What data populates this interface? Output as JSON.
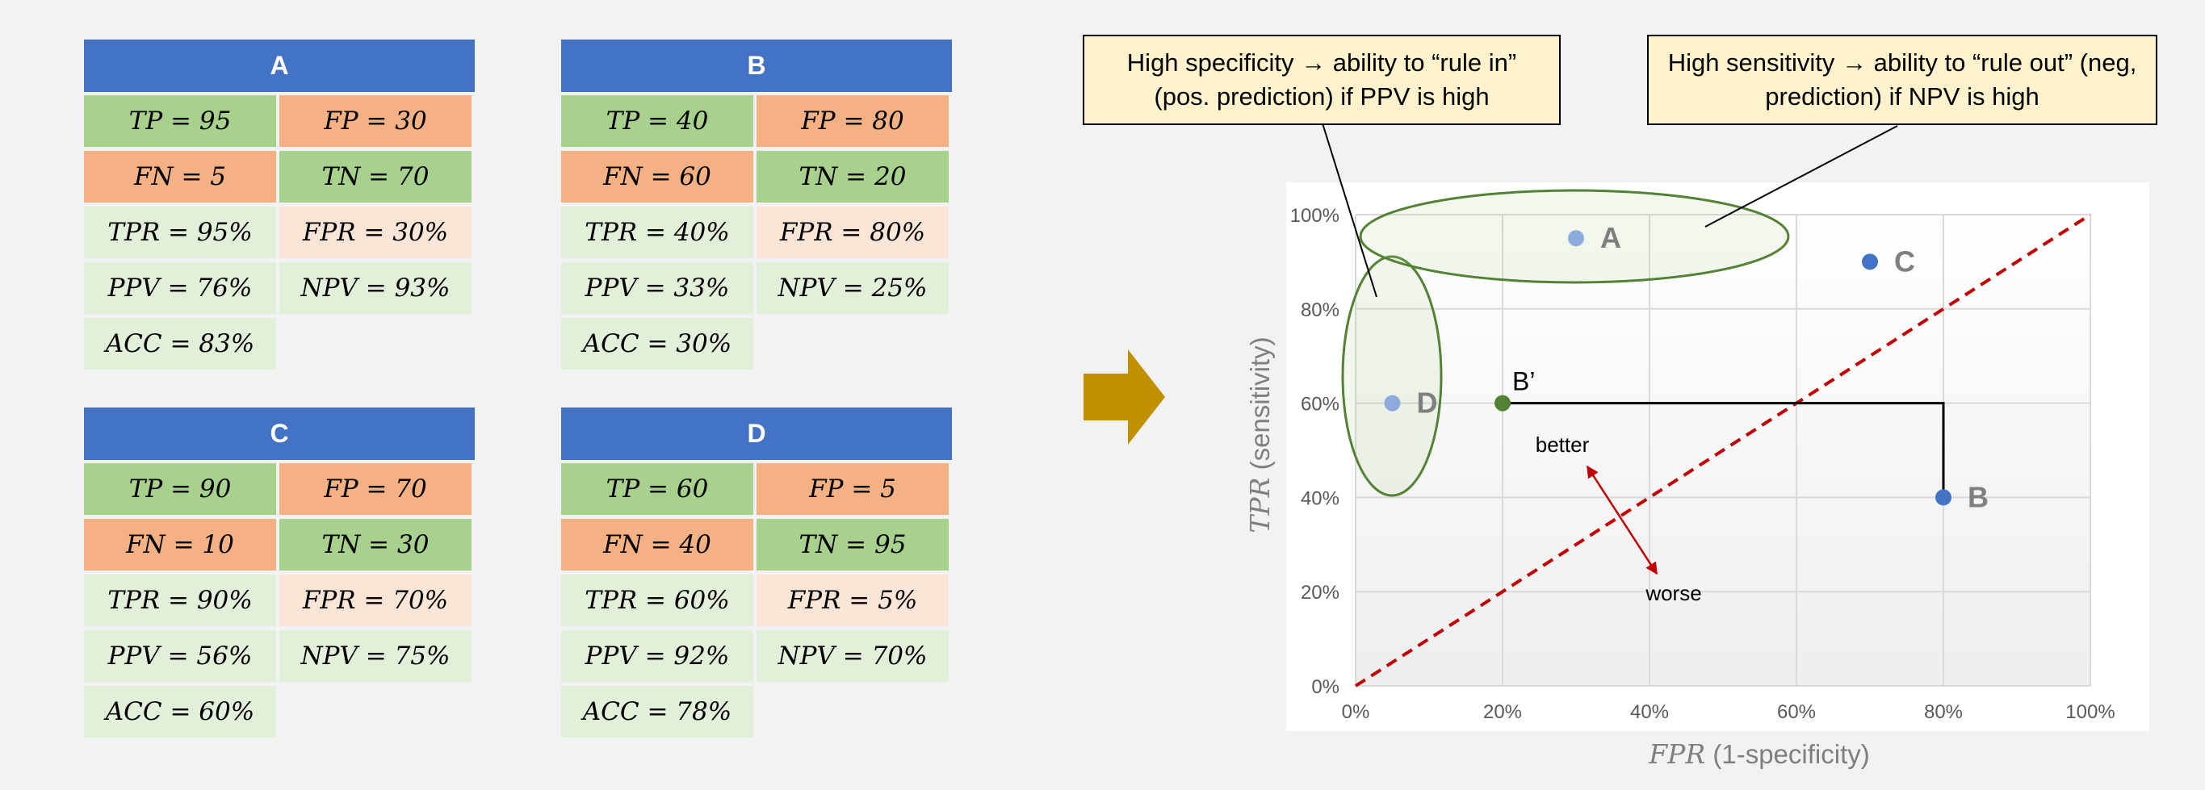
{
  "tables": [
    {
      "title": "A",
      "tp": "TP = 95",
      "fp": "FP = 30",
      "fn": "FN = 5",
      "tn": "TN = 70",
      "tpr": "TPR = 95%",
      "fpr": "FPR = 30%",
      "ppv": "PPV = 76%",
      "npv": "NPV = 93%",
      "acc": "ACC = 83%"
    },
    {
      "title": "B",
      "tp": "TP = 40",
      "fp": "FP = 80",
      "fn": "FN = 60",
      "tn": "TN = 20",
      "tpr": "TPR = 40%",
      "fpr": "FPR = 80%",
      "ppv": "PPV = 33%",
      "npv": "NPV = 25%",
      "acc": "ACC = 30%"
    },
    {
      "title": "C",
      "tp": "TP = 90",
      "fp": "FP = 70",
      "fn": "FN = 10",
      "tn": "TN = 30",
      "tpr": "TPR = 90%",
      "fpr": "FPR = 70%",
      "ppv": "PPV = 56%",
      "npv": "NPV = 75%",
      "acc": "ACC = 60%"
    },
    {
      "title": "D",
      "tp": "TP = 60",
      "fp": "FP = 5",
      "fn": "FN = 40",
      "tn": "TN = 95",
      "tpr": "TPR = 60%",
      "fpr": "FPR = 5%",
      "ppv": "PPV = 92%",
      "npv": "NPV = 70%",
      "acc": "ACC = 78%"
    }
  ],
  "callouts": {
    "specificity": "High specificity → ability to “rule in” (pos. prediction) if PPV is high",
    "sensitivity": "High sensitivity → ability to “rule out” (neg, prediction) if NPV is high"
  },
  "chart": {
    "x_axis_label_var": "FPR",
    "x_axis_label_rest": " (1-specificity)",
    "y_axis_label_var": "TPR",
    "y_axis_label_rest": " (sensitivity)",
    "better_label": "better",
    "worse_label": "worse"
  },
  "chart_data": {
    "type": "scatter",
    "xlabel": "FPR (1-specificity)",
    "ylabel": "TPR (sensitivity)",
    "xlim": [
      0,
      100
    ],
    "ylim": [
      0,
      100
    ],
    "x_ticks": [
      "0%",
      "20%",
      "40%",
      "60%",
      "80%",
      "100%"
    ],
    "y_ticks": [
      "0%",
      "20%",
      "40%",
      "60%",
      "80%",
      "100%"
    ],
    "grid": true,
    "points": [
      {
        "label": "A",
        "x": 30,
        "y": 95,
        "color": "#8faadc"
      },
      {
        "label": "B",
        "x": 80,
        "y": 40,
        "color": "#4472c4"
      },
      {
        "label": "C",
        "x": 70,
        "y": 90,
        "color": "#4472c4"
      },
      {
        "label": "D",
        "x": 5,
        "y": 60,
        "color": "#8faadc"
      },
      {
        "label": "B’",
        "x": 20,
        "y": 60,
        "color": "#548235"
      }
    ],
    "diagonal": {
      "from": [
        0,
        0
      ],
      "to": [
        100,
        100
      ],
      "style": "dashed",
      "color": "#c00000"
    }
  },
  "colors": {
    "header": "#4472c4",
    "arrow": "#bf9000",
    "green_cell": "#a9d18e",
    "orange_cell": "#f4b183",
    "light_green": "#e2efd9",
    "light_pink": "#fbe5d6",
    "ellipse": "#548235"
  }
}
